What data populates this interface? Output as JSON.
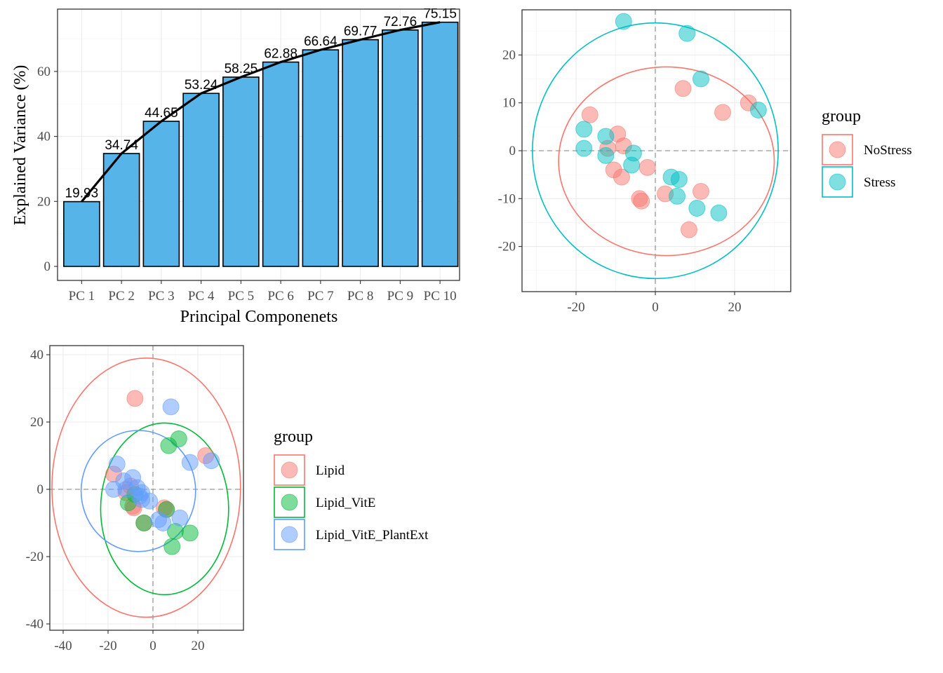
{
  "colors": {
    "bar_fill": "#56b4e9",
    "nostress": "#f8766d",
    "stress": "#00bfc4",
    "lipid": "#f8766d",
    "lipid_vite": "#00ba38",
    "lipid_vite_plantext": "#619cff",
    "ref_line": "#999999"
  },
  "chart_data": [
    {
      "type": "bar",
      "title": "",
      "xlabel": "Principal Componenets",
      "ylabel": "Explained Variance (%)",
      "categories": [
        "PC 1",
        "PC 2",
        "PC 3",
        "PC 4",
        "PC 5",
        "PC 6",
        "PC 7",
        "PC 8",
        "PC 9",
        "PC 10"
      ],
      "values": [
        19.93,
        34.74,
        44.65,
        53.24,
        58.25,
        62.88,
        66.64,
        69.77,
        72.76,
        75.15
      ],
      "value_labels": [
        "19.93",
        "34.74",
        "44.65",
        "53.24",
        "58.25",
        "62.88",
        "66.64",
        "69.77",
        "72.76",
        "75.15"
      ],
      "overlay": "cumulative line through bar tops",
      "ylim": [
        0,
        80
      ],
      "yticks": [
        "0",
        "20",
        "40",
        "60"
      ],
      "grid": true
    },
    {
      "type": "scatter",
      "title": "",
      "xlabel": "",
      "ylabel": "",
      "xlim": [
        -33,
        34
      ],
      "ylim": [
        -29.5,
        29
      ],
      "xticks": [
        "-20",
        "0",
        "20"
      ],
      "yticks": [
        "20",
        "10",
        "0",
        "-10",
        "-20"
      ],
      "reference_lines": [
        0,
        0
      ],
      "grid": true,
      "legend": {
        "title": "group",
        "placement": "right"
      },
      "series": [
        {
          "name": "NoStress",
          "points": [
            [
              -16.5,
              7.5
            ],
            [
              -12,
              0.5
            ],
            [
              -9.5,
              3.5
            ],
            [
              -8,
              1
            ],
            [
              -10.5,
              -4
            ],
            [
              -8.5,
              -5.5
            ],
            [
              -2,
              -3.5
            ],
            [
              -4,
              -10
            ],
            [
              -3.5,
              -10.5
            ],
            [
              2.5,
              -9
            ],
            [
              11.5,
              -8.5
            ],
            [
              8.5,
              -16.5
            ],
            [
              7,
              13
            ],
            [
              17,
              8
            ],
            [
              23.5,
              10
            ]
          ],
          "ellipse": {
            "center": [
              2.8,
              -2.2
            ],
            "radius_x": 27.2,
            "radius_y": 19.7,
            "tilt_deg": 0
          }
        },
        {
          "name": "Stress",
          "points": [
            [
              -8,
              27
            ],
            [
              8,
              24.5
            ],
            [
              -18,
              4.5
            ],
            [
              -18,
              0.5
            ],
            [
              -12.5,
              3
            ],
            [
              -12.5,
              -1
            ],
            [
              -5.5,
              -0.5
            ],
            [
              -6,
              -3
            ],
            [
              4,
              -5.5
            ],
            [
              6,
              -6
            ],
            [
              5.5,
              -9.5
            ],
            [
              10.5,
              -12
            ],
            [
              16,
              -13
            ],
            [
              11.5,
              15
            ],
            [
              26,
              8.5
            ]
          ],
          "ellipse": {
            "center": [
              0,
              0
            ],
            "radius_x": 31,
            "radius_y": 26.7,
            "tilt_deg": 0
          }
        }
      ]
    },
    {
      "type": "scatter",
      "title": "",
      "xlabel": "",
      "ylabel": "",
      "xlim": [
        -45,
        40
      ],
      "ylim": [
        -41,
        41
      ],
      "xticks": [
        "-40",
        "-20",
        "0",
        "20"
      ],
      "yticks": [
        "40",
        "20",
        "0",
        "-20",
        "-40"
      ],
      "reference_lines": [
        0,
        0
      ],
      "grid": true,
      "legend": {
        "title": "group",
        "placement": "right"
      },
      "series": [
        {
          "name": "Lipid",
          "points": [
            [
              -8,
              27
            ],
            [
              -17.5,
              4.5
            ],
            [
              -10,
              1
            ],
            [
              -12,
              -1
            ],
            [
              -9,
              -5
            ],
            [
              -8.5,
              -5.5
            ],
            [
              -4,
              -10
            ],
            [
              5,
              -5.5
            ],
            [
              6,
              -6
            ],
            [
              23.5,
              10
            ]
          ],
          "ellipse": {
            "center": [
              -3,
              0.5
            ],
            "radius_x": 42,
            "radius_y": 38.5,
            "tilt_deg": 0
          }
        },
        {
          "name": "Lipid_VitE",
          "points": [
            [
              7,
              13
            ],
            [
              11.5,
              15
            ],
            [
              -11,
              -4
            ],
            [
              -4,
              -10
            ],
            [
              6,
              -6
            ],
            [
              10,
              -12.5
            ],
            [
              16.5,
              -13
            ],
            [
              8.5,
              -17
            ],
            [
              -8,
              -1.5
            ]
          ],
          "ellipse": {
            "center": [
              5.2,
              -5.8
            ],
            "radius_x": 28.5,
            "radius_y": 25.5,
            "tilt_deg": 0
          }
        },
        {
          "name": "Lipid_VitE_PlantExt",
          "points": [
            [
              8,
              24.5
            ],
            [
              -16,
              7.5
            ],
            [
              -17.5,
              0
            ],
            [
              -13,
              2.5
            ],
            [
              -9,
              3.5
            ],
            [
              -12,
              0
            ],
            [
              -7,
              0.5
            ],
            [
              -5,
              -1
            ],
            [
              -6,
              -2
            ],
            [
              -5,
              -3
            ],
            [
              -1.5,
              -3.5
            ],
            [
              2.5,
              -9
            ],
            [
              4.5,
              -10
            ],
            [
              12,
              -8.5
            ],
            [
              16.5,
              8
            ],
            [
              26,
              8.5
            ]
          ],
          "ellipse": {
            "center": [
              -6.5,
              -0.5
            ],
            "radius_x": 25.5,
            "radius_y": 18,
            "tilt_deg": 0
          }
        }
      ]
    }
  ]
}
